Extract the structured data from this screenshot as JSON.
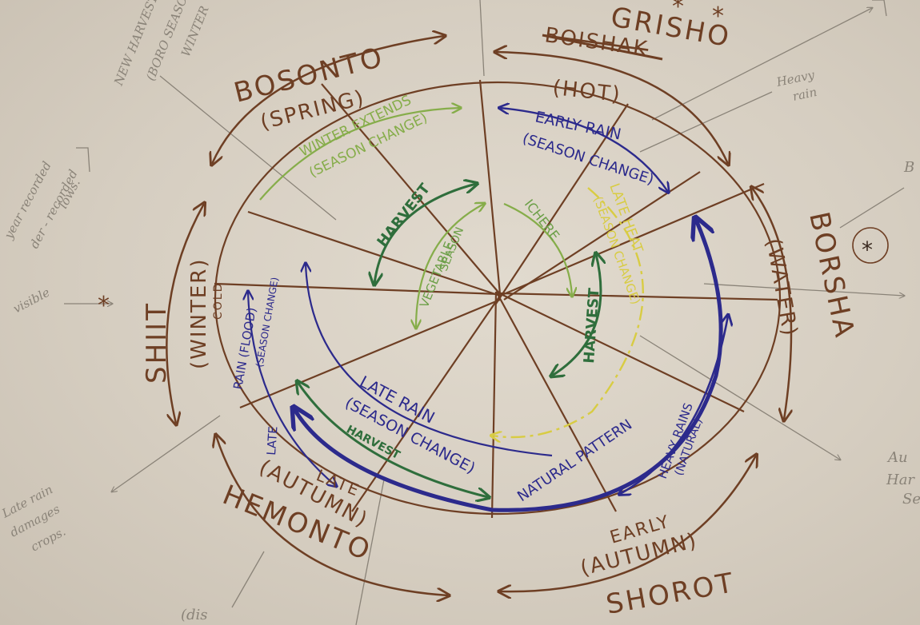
{
  "seasons": {
    "bosonto": {
      "name": "BOSONTO",
      "sub": "(SPRING)"
    },
    "grisho": {
      "name": "GRISHO",
      "struck": "BOISHAK",
      "sub": "(HOT)"
    },
    "borsha": {
      "name": "BORSHA",
      "sub": "(WATER)"
    },
    "shorot": {
      "name": "SHOROT",
      "sub": "(AUTUMN)",
      "note": "EARLY"
    },
    "hemonto": {
      "name": "HEMONTO",
      "sub": "(AUTUMN)",
      "note": "LATE"
    },
    "shiit": {
      "name": "SHIIT",
      "sub": "(WINTER)",
      "note": "COLD"
    }
  },
  "inner_labels": {
    "winter_extends": "WINTER EXTENDS",
    "winter_extends_sub": "(SEASON CHANGE)",
    "early_rain": "EARLY RAIN",
    "early_rain_sub": "(SEASON CHANGE)",
    "late_heat": "LATE HEAT",
    "late_heat_sub": "(SEASON CHANGE)",
    "harvest_top": "HARVEST",
    "ichere": "ICHERE",
    "vegetable": "VEGETABLE",
    "vegetable_sub": "SEASON",
    "harvest_right": "HARVEST",
    "rain_flood": "RAIN (FLOOD)",
    "rain_flood_sub": "(SEASON CHANGE)",
    "late_rain": "LATE RAIN",
    "late_rain_sub": "(SEASON CHANGE)",
    "harvest_bottom": "HARVEST",
    "natural_pattern": "NATURAL PATTERN",
    "heavy_rains": "HEAVY RAINS",
    "heavy_rains_sub": "(NATURAL)",
    "late_left": "LATE"
  },
  "pencil_notes": {
    "new_harvest": "NEW HARVEST",
    "boro_season": "(BORO SEASON",
    "winter": "WINTER",
    "heavy_rain_1": "Heavy",
    "heavy_rain_2": "rain",
    "year_recorded_1": "year recorded",
    "year_recorded_2": "der - recorded",
    "year_recorded_3": "lows.",
    "visible": "visible",
    "late_rain_1": "Late rain",
    "late_rain_2": "damages",
    "late_rain_3": "crops.",
    "au": "Au",
    "har": "Har",
    "se": "Se",
    "dis": "(dis",
    "b": "B",
    "star": "*"
  },
  "colors": {
    "brown": "#6e3f24",
    "blue": "#2c2a8c",
    "dark_green": "#2f6e3c",
    "light_green": "#86ad4a",
    "yellow": "#d8cc43",
    "pencil": "#8a8378"
  }
}
